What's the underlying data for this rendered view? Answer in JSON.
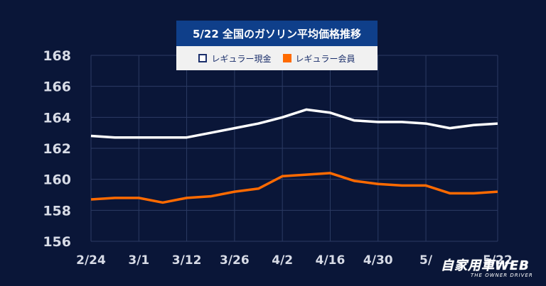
{
  "header": {
    "title": "5/22 全国のガソリン平均価格推移"
  },
  "logo": {
    "main": "自家用車WEB",
    "sub": "THE OWNER DRIVER"
  },
  "colors": {
    "background": "#0a1638",
    "title_bg": "#0f3f8a",
    "series_cash": "#ffffff",
    "series_member": "#ff6a00",
    "gridline": "#2c3b63",
    "axis_text": "#d7dbe6"
  },
  "chart_data": {
    "type": "line",
    "title": "5/22 全国のガソリン平均価格推移",
    "xlabel": "",
    "ylabel": "",
    "ylim": [
      156,
      168
    ],
    "yticks": [
      156,
      158,
      160,
      162,
      164,
      166,
      168
    ],
    "grid": true,
    "legend": "top-center",
    "x_tick_labels": [
      "2/24",
      "3/1",
      "3/12",
      "3/26",
      "4/2",
      "4/16",
      "4/30",
      "5/",
      "5/22"
    ],
    "series": [
      {
        "name": "レギュラー現金",
        "color": "#ffffff",
        "values": [
          162.8,
          162.7,
          162.7,
          162.7,
          162.7,
          163.0,
          163.3,
          163.6,
          164.0,
          164.5,
          164.3,
          163.8,
          163.7,
          163.7,
          163.6,
          163.3,
          163.5,
          163.6
        ]
      },
      {
        "name": "レギュラー会員",
        "color": "#ff6a00",
        "values": [
          158.7,
          158.8,
          158.8,
          158.5,
          158.8,
          158.9,
          159.2,
          159.4,
          160.2,
          160.3,
          160.4,
          159.9,
          159.7,
          159.6,
          159.6,
          159.1,
          159.1,
          159.2
        ]
      }
    ]
  }
}
